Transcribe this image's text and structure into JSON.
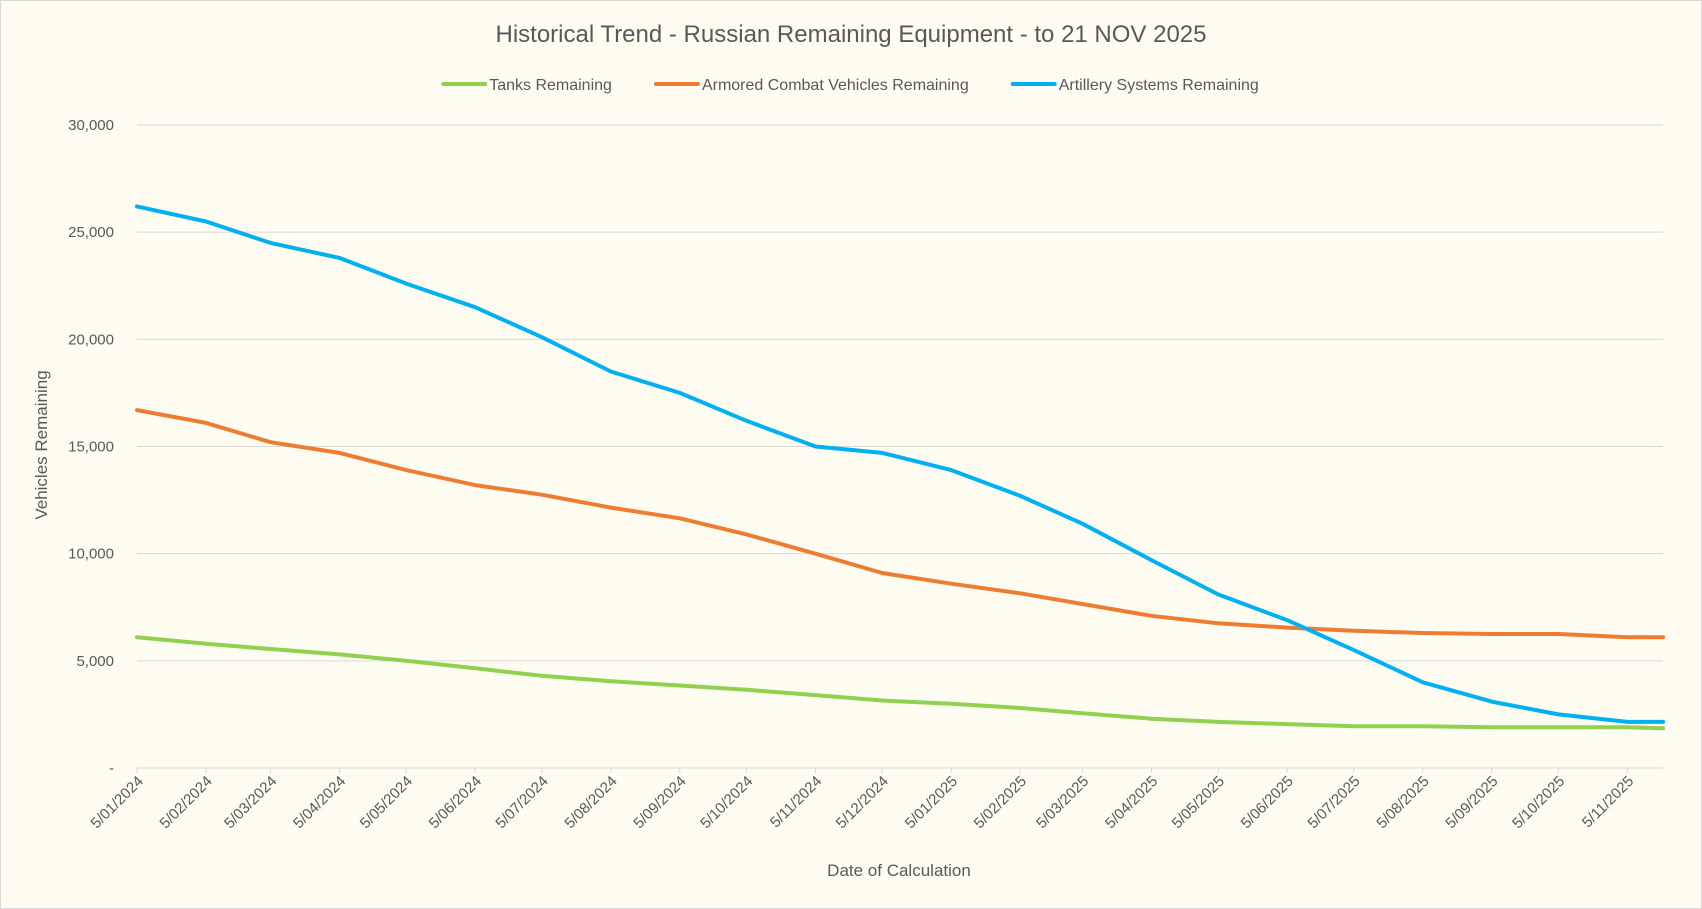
{
  "chart_data": {
    "type": "line",
    "title": "Historical Trend - Russian Remaining Equipment - to 21 NOV 2025",
    "xlabel": "Date of Calculation",
    "ylabel": "Vehicles Remaining",
    "ylim": [
      0,
      30000
    ],
    "ytick_values": [
      0,
      5000,
      10000,
      15000,
      20000,
      25000,
      30000
    ],
    "ytick_labels": [
      "-",
      "5,000",
      "10,000",
      "15,000",
      "20,000",
      "25,000",
      "30,000"
    ],
    "x_tick_labels": [
      "5/01/2024",
      "5/02/2024",
      "5/03/2024",
      "5/04/2024",
      "5/05/2024",
      "5/06/2024",
      "5/07/2024",
      "5/08/2024",
      "5/09/2024",
      "5/10/2024",
      "5/11/2024",
      "5/12/2024",
      "5/01/2025",
      "5/02/2025",
      "5/03/2025",
      "5/04/2025",
      "5/05/2025",
      "5/06/2025",
      "5/07/2025",
      "5/08/2025",
      "5/09/2025",
      "5/10/2025",
      "5/11/2025"
    ],
    "x_end_date": "21/11/2025",
    "grid": true,
    "legend_position": "top",
    "series": [
      {
        "name": "Tanks Remaining",
        "color": "#92d050",
        "x": [
          "5/01/2024",
          "5/02/2024",
          "5/03/2024",
          "5/04/2024",
          "5/05/2024",
          "5/06/2024",
          "5/07/2024",
          "5/08/2024",
          "5/09/2024",
          "5/10/2024",
          "5/11/2024",
          "5/12/2024",
          "5/01/2025",
          "5/02/2025",
          "5/03/2025",
          "5/04/2025",
          "5/05/2025",
          "5/06/2025",
          "5/07/2025",
          "5/08/2025",
          "5/09/2025",
          "5/10/2025",
          "5/11/2025",
          "21/11/2025"
        ],
        "values": [
          6100,
          5800,
          5550,
          5300,
          5000,
          4650,
          4300,
          4050,
          3850,
          3650,
          3400,
          3150,
          3000,
          2800,
          2550,
          2300,
          2150,
          2050,
          1950,
          1950,
          1900,
          1900,
          1900,
          1850
        ]
      },
      {
        "name": "Armored Combat Vehicles Remaining",
        "color": "#ed7d31",
        "x": [
          "5/01/2024",
          "5/02/2024",
          "5/03/2024",
          "5/04/2024",
          "5/05/2024",
          "5/06/2024",
          "5/07/2024",
          "5/08/2024",
          "5/09/2024",
          "5/10/2024",
          "5/11/2024",
          "5/12/2024",
          "5/01/2025",
          "5/02/2025",
          "5/03/2025",
          "5/04/2025",
          "5/05/2025",
          "5/06/2025",
          "5/07/2025",
          "5/08/2025",
          "5/09/2025",
          "5/10/2025",
          "5/11/2025",
          "21/11/2025"
        ],
        "values": [
          16700,
          16100,
          15200,
          14700,
          13900,
          13200,
          12750,
          12150,
          11650,
          10900,
          10000,
          9100,
          8600,
          8150,
          7650,
          7100,
          6750,
          6550,
          6400,
          6300,
          6250,
          6250,
          6100,
          6100
        ]
      },
      {
        "name": "Artillery Systems Remaining",
        "color": "#00b0f0",
        "x": [
          "5/01/2024",
          "5/02/2024",
          "5/03/2024",
          "5/04/2024",
          "5/05/2024",
          "5/06/2024",
          "5/07/2024",
          "5/08/2024",
          "5/09/2024",
          "5/10/2024",
          "5/11/2024",
          "5/12/2024",
          "5/01/2025",
          "5/02/2025",
          "5/03/2025",
          "5/04/2025",
          "5/05/2025",
          "5/06/2025",
          "5/07/2025",
          "5/08/2025",
          "5/09/2025",
          "5/10/2025",
          "5/11/2025",
          "21/11/2025"
        ],
        "values": [
          26200,
          25500,
          24500,
          23800,
          22600,
          21500,
          20100,
          18500,
          17500,
          16200,
          15000,
          14700,
          13900,
          12700,
          11400,
          9700,
          8100,
          6900,
          5500,
          4000,
          3100,
          2500,
          2150,
          2150
        ]
      }
    ]
  }
}
